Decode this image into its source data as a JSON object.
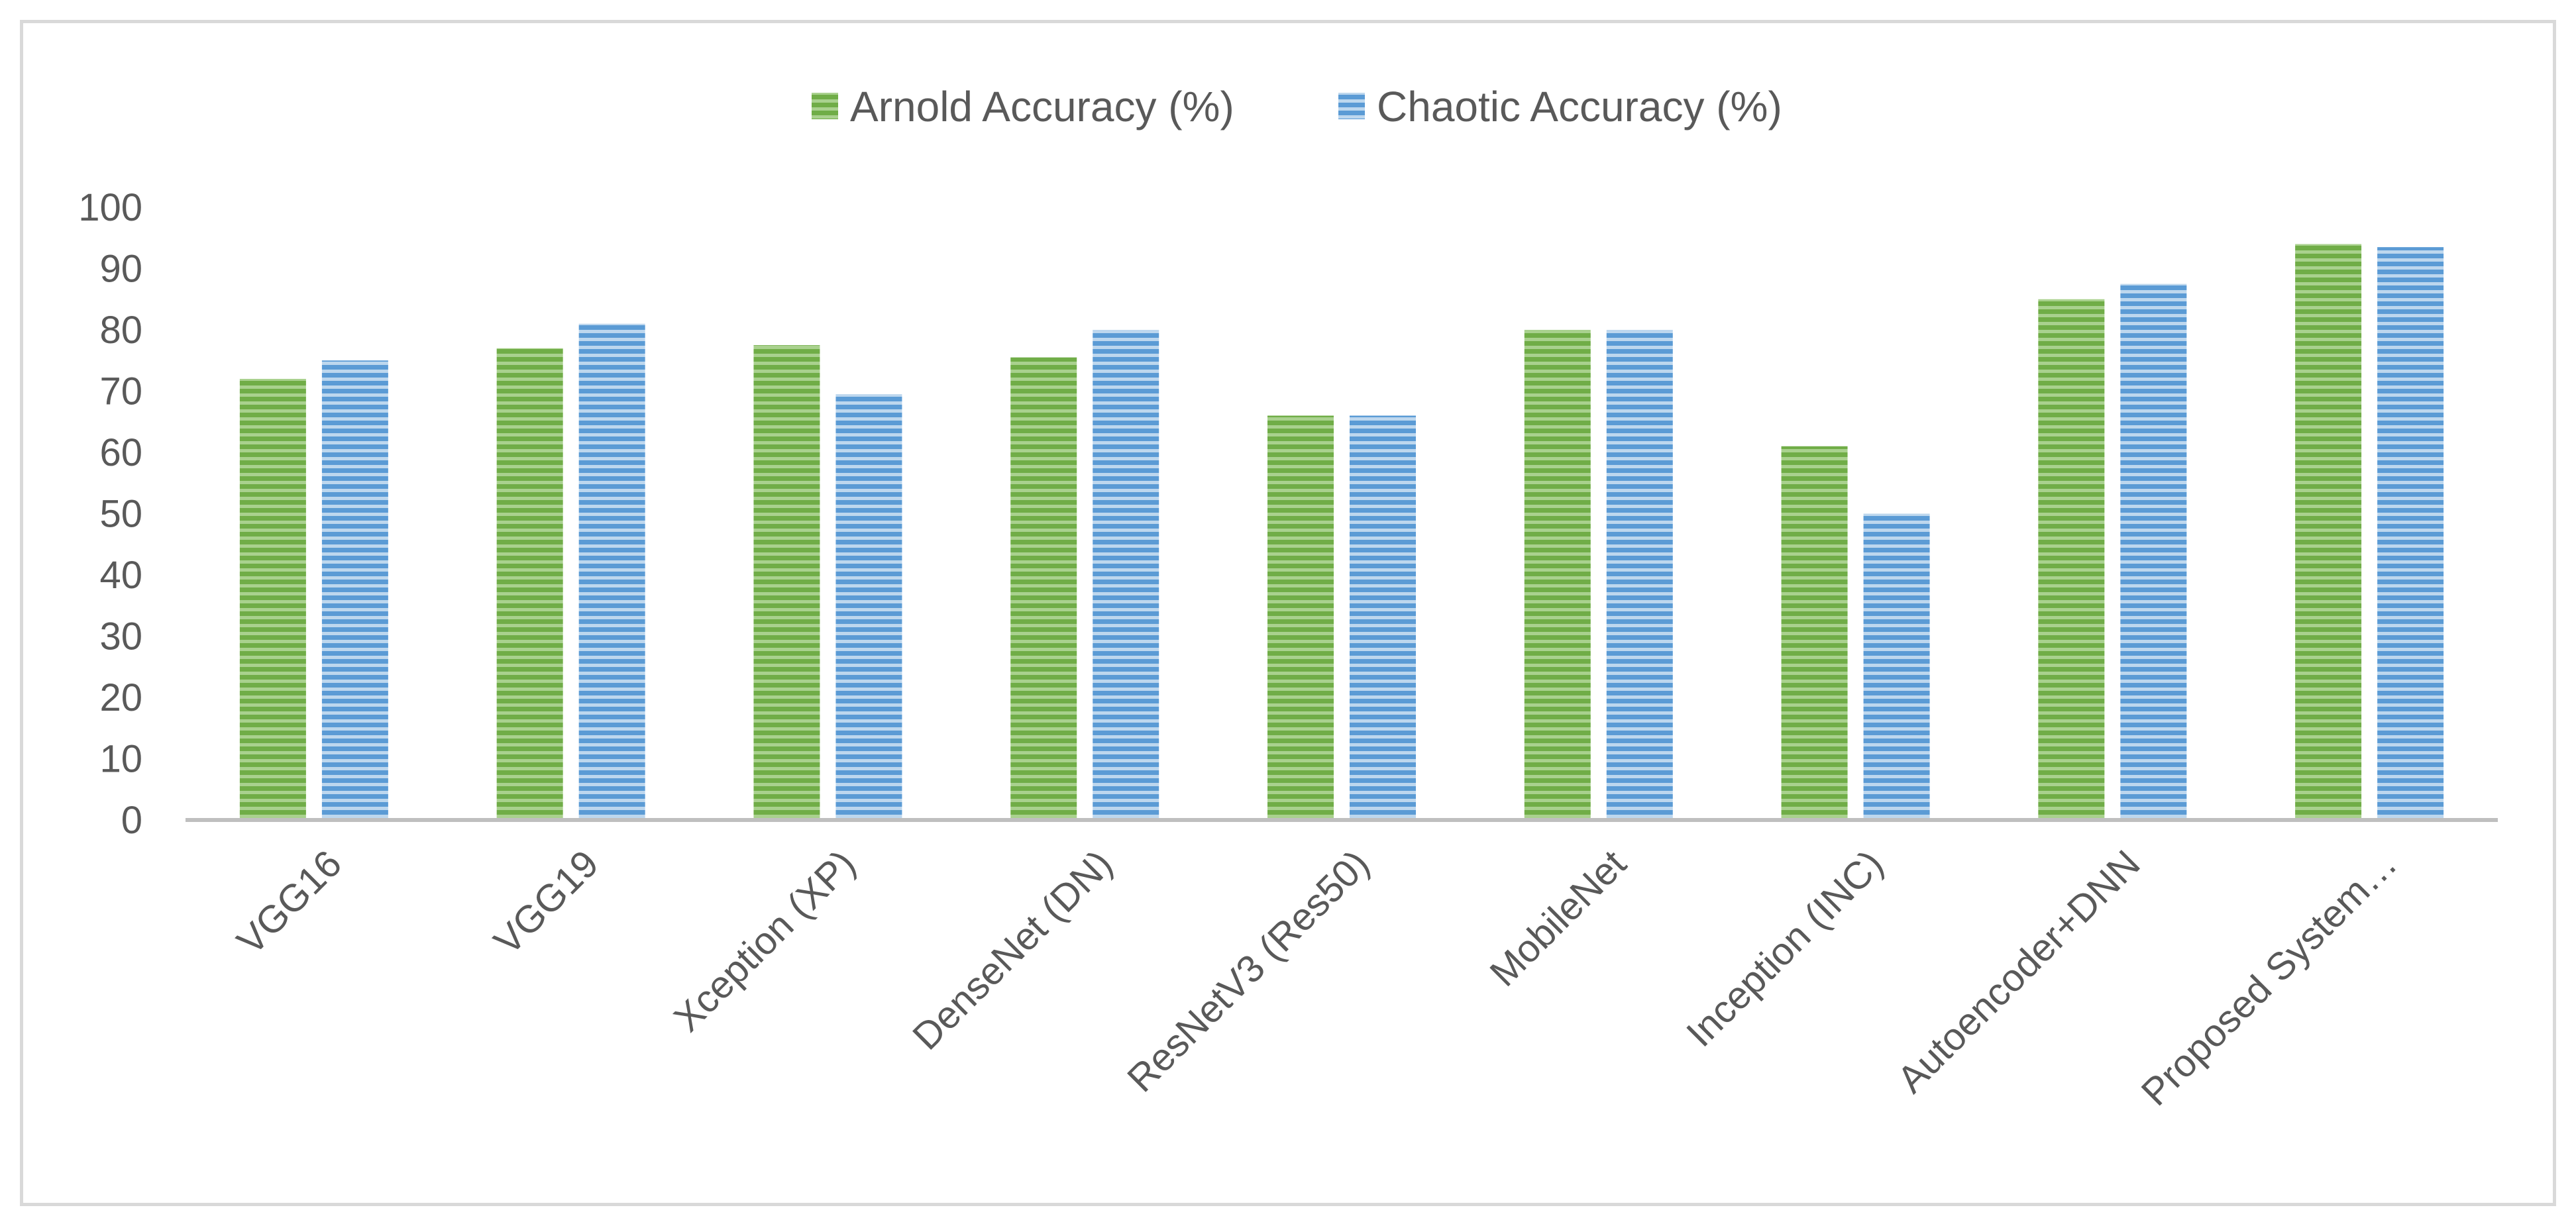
{
  "chart_data": {
    "type": "bar",
    "categories": [
      "VGG16",
      "VGG19",
      "Xception (XP)",
      "DenseNet (DN)",
      "ResNetV3 (Res50)",
      "MobileNet",
      "Inception (INC)",
      "Autoencoder+DNN",
      "Proposed System…"
    ],
    "series": [
      {
        "name": "Arnold Accuracy (%)",
        "values": [
          72,
          77,
          77.5,
          75.5,
          66,
          80,
          61,
          85,
          94
        ],
        "color": "#70ad47"
      },
      {
        "name": "Chaotic Accuracy (%)",
        "values": [
          75,
          81,
          69.5,
          80,
          66,
          80,
          50,
          87.5,
          93.5
        ],
        "color": "#5b9bd5"
      }
    ],
    "xlabel": "",
    "ylabel": "",
    "ylim": [
      0,
      100
    ],
    "yticks": [
      0,
      10,
      20,
      30,
      40,
      50,
      60,
      70,
      80,
      90,
      100
    ],
    "grid": false,
    "legend_position": "top-center",
    "bar_pattern": "horizontal-stripes"
  }
}
